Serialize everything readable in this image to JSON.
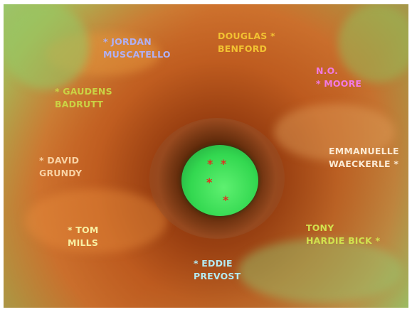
{
  "names": [
    {
      "lines": [
        "* JORDAN",
        "MUSCATELLO"
      ]
    },
    {
      "lines": [
        "DOUGLAS *",
        "BENFORD"
      ]
    },
    {
      "lines": [
        "N.O.",
        "* MOORE"
      ]
    },
    {
      "lines": [
        "* GAUDENS",
        "BADRUTT"
      ]
    },
    {
      "lines": [
        "* DAVID",
        "GRUNDY"
      ]
    },
    {
      "lines": [
        "EMMANUELLE",
        "WAECKERLE *"
      ]
    },
    {
      "lines": [
        "* TOM",
        "MILLS"
      ]
    },
    {
      "lines": [
        "TONY",
        "HARDIE BICK *"
      ]
    },
    {
      "lines": [
        "* EDDIE",
        "PREVOST"
      ]
    }
  ],
  "center_marks": [
    "*",
    "*",
    "*",
    "*"
  ]
}
